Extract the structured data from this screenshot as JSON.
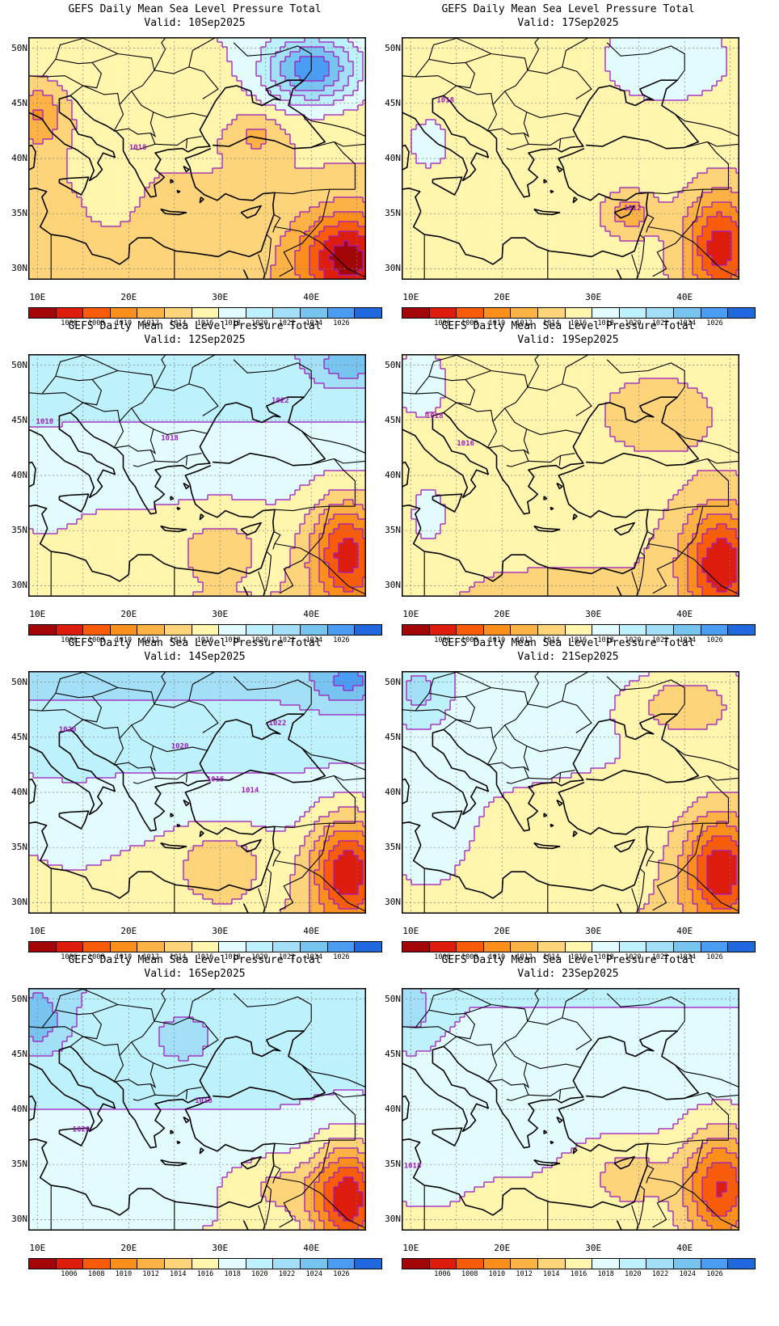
{
  "colors": {
    "bins": [
      "#a30606",
      "#dd1c0e",
      "#f85c0b",
      "#fa8f1c",
      "#fcb245",
      "#fdd479",
      "#fff5ac",
      "#e2fcfe",
      "#bdf1fb",
      "#a3e0f8",
      "#78c4f1",
      "#4a9df2",
      "#1f68dd"
    ],
    "contour": "#a01cc0",
    "coast": "#000000",
    "grid": "#7f7f7f"
  },
  "colorbar_labels": [
    "1006",
    "1008",
    "1010",
    "1012",
    "1014",
    "1016",
    "1018",
    "1020",
    "1022",
    "1024",
    "1026"
  ],
  "lat_labels": [
    "50N",
    "45N",
    "40N",
    "35N",
    "30N"
  ],
  "lon_labels": [
    "10E",
    "20E",
    "30E",
    "40E"
  ],
  "panels": [
    {
      "title": "GEFS Daily Mean Sea Level Pressure Total",
      "valid": "Valid: 10Sep2025",
      "contour_labels": [
        "1018"
      ]
    },
    {
      "title": "GEFS Daily Mean Sea Level Pressure Total",
      "valid": "Valid: 17Sep2025",
      "contour_labels": [
        "1018",
        "1012"
      ]
    },
    {
      "title": "GEFS Daily Mean Sea Level Pressure Total",
      "valid": "Valid: 12Sep2025",
      "contour_labels": [
        "1018",
        "1018",
        "1022"
      ]
    },
    {
      "title": "GEFS Daily Mean Sea Level Pressure Total",
      "valid": "Valid: 19Sep2025",
      "contour_labels": [
        "1018",
        "1016"
      ]
    },
    {
      "title": "GEFS Daily Mean Sea Level Pressure Total",
      "valid": "Valid: 14Sep2025",
      "contour_labels": [
        "1020",
        "1020",
        "1022",
        "1016",
        "1014"
      ]
    },
    {
      "title": "GEFS Daily Mean Sea Level Pressure Total",
      "valid": "Valid: 21Sep2025",
      "contour_labels": []
    },
    {
      "title": "GEFS Daily Mean Sea Level Pressure Total",
      "valid": "Valid: 16Sep2025",
      "contour_labels": [
        "1020",
        "1018"
      ]
    },
    {
      "title": "GEFS Daily Mean Sea Level Pressure Total",
      "valid": "Valid: 23Sep2025",
      "contour_labels": [
        "1018"
      ]
    }
  ]
}
